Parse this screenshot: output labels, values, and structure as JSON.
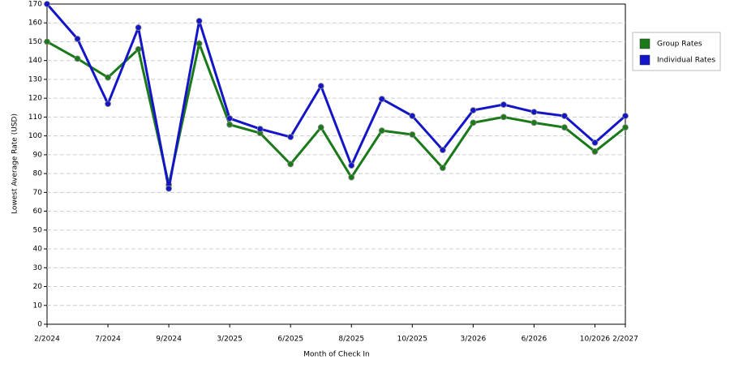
{
  "chart_data": {
    "type": "line",
    "xlabel": "Month of Check In",
    "ylabel": "Lowest Average Rate (USD)",
    "categories": [
      "2/2024",
      null,
      "7/2024",
      null,
      "9/2024",
      null,
      "3/2025",
      null,
      "6/2025",
      null,
      "8/2025",
      null,
      "10/2025",
      null,
      "3/2026",
      null,
      "6/2026",
      null,
      "10/2026",
      "2/2027"
    ],
    "series": [
      {
        "name": "Group Rates",
        "color": "#1a7a1a",
        "values": [
          150,
          141,
          131,
          146,
          74,
          149,
          106,
          101.5,
          85,
          104.5,
          78,
          102.8,
          100.7,
          83,
          107,
          110,
          107,
          104.5,
          91.7,
          104.5
        ]
      },
      {
        "name": "Individual Rates",
        "color": "#1515c8",
        "values": [
          170,
          151.5,
          117,
          157.5,
          72,
          161,
          109.3,
          103.7,
          99.4,
          126.5,
          84.3,
          119.6,
          110.6,
          92.5,
          113.6,
          116.6,
          112.7,
          110.6,
          96.4,
          110.6
        ]
      }
    ],
    "ylim": [
      0,
      170
    ],
    "yticks": [
      0,
      10,
      20,
      30,
      40,
      50,
      60,
      70,
      80,
      90,
      100,
      110,
      120,
      130,
      140,
      150,
      160,
      170
    ],
    "grid": true,
    "legend": "right"
  }
}
